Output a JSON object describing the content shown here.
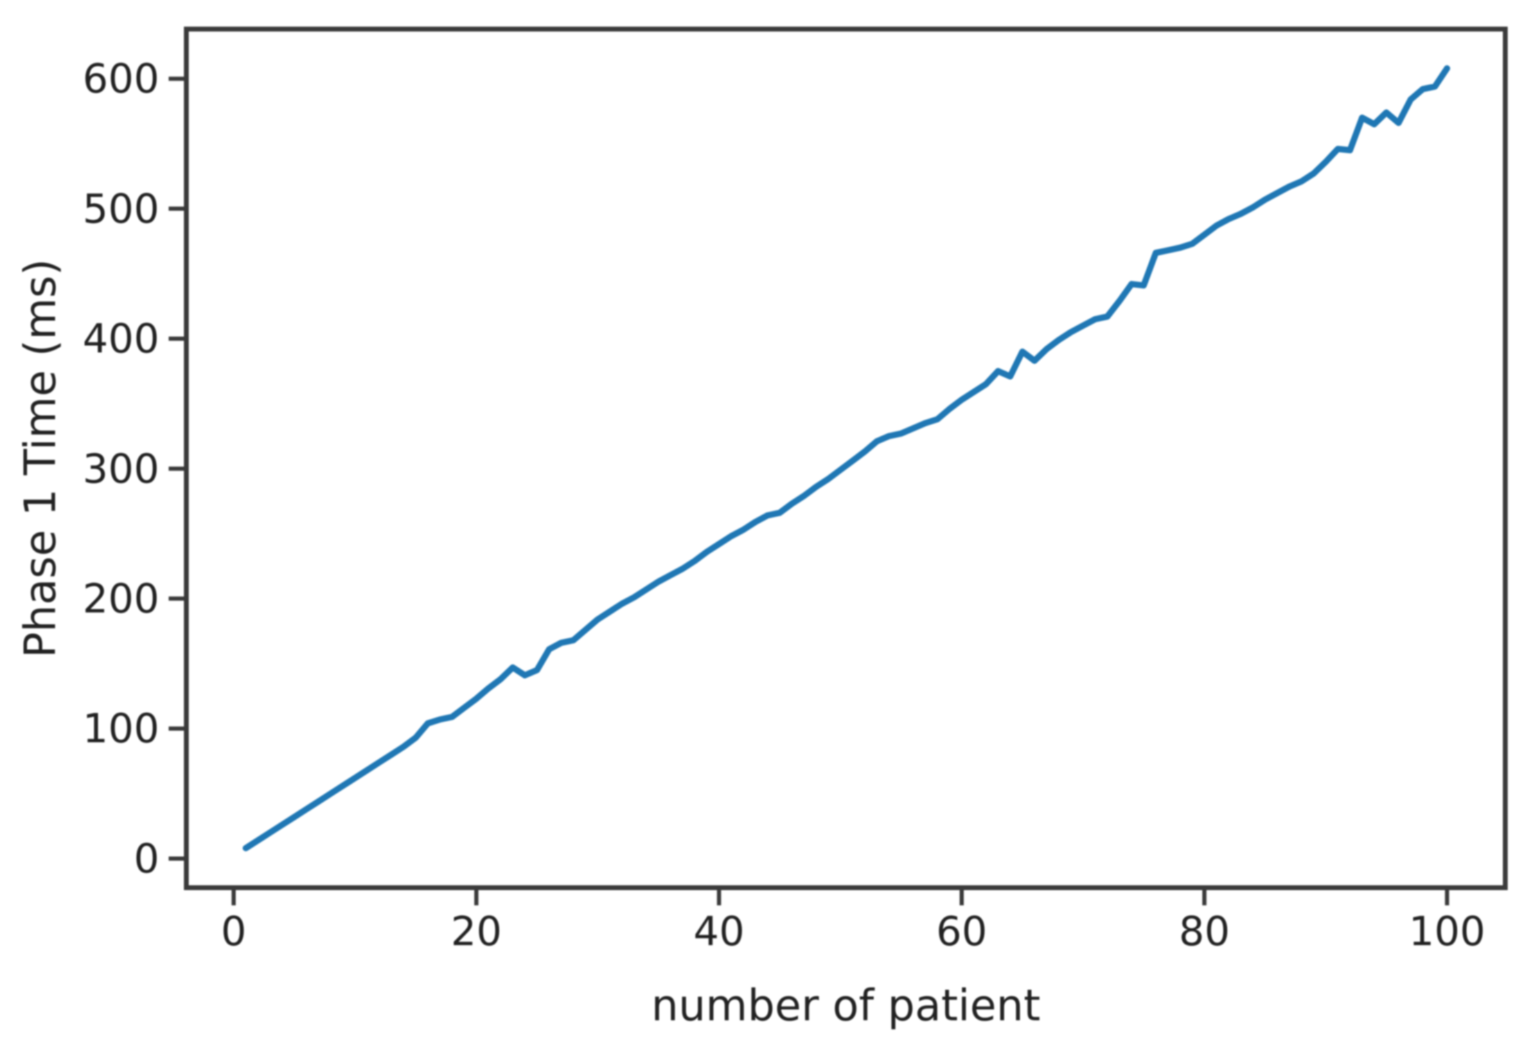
{
  "figure": {
    "background": "#ffffff"
  },
  "chart_data": {
    "type": "line",
    "title": "",
    "xlabel": "number of patient",
    "ylabel": "Phase 1 Time (ms)",
    "x_ticks": [
      0,
      20,
      40,
      60,
      80,
      100
    ],
    "y_ticks": [
      0,
      100,
      200,
      300,
      400,
      500,
      600
    ],
    "xlim": [
      -3.9,
      104.8
    ],
    "ylim": [
      -22.4,
      638.2
    ],
    "grid": false,
    "legend_position": "none",
    "line_color": "#1f77b4",
    "axis_color": "#3a3a3a",
    "text_color": "#212121",
    "series": [
      {
        "name": "phase-1-time",
        "x": [
          1,
          2,
          3,
          4,
          5,
          6,
          7,
          8,
          9,
          10,
          11,
          12,
          13,
          14,
          15,
          16,
          17,
          18,
          19,
          20,
          21,
          22,
          23,
          24,
          25,
          26,
          27,
          28,
          29,
          30,
          31,
          32,
          33,
          34,
          35,
          36,
          37,
          38,
          39,
          40,
          41,
          42,
          43,
          44,
          45,
          46,
          47,
          48,
          49,
          50,
          51,
          52,
          53,
          54,
          55,
          56,
          57,
          58,
          59,
          60,
          61,
          62,
          63,
          64,
          65,
          66,
          67,
          68,
          69,
          70,
          71,
          72,
          73,
          74,
          75,
          76,
          77,
          78,
          79,
          80,
          81,
          82,
          83,
          84,
          85,
          86,
          87,
          88,
          89,
          90,
          91,
          92,
          93,
          94,
          95,
          96,
          97,
          98,
          99,
          100
        ],
        "y": [
          8,
          14,
          20,
          26,
          32,
          38,
          44,
          50,
          56,
          62,
          68,
          74,
          80,
          86,
          93,
          104,
          107,
          109,
          116,
          123,
          131,
          138,
          147,
          141,
          145,
          161,
          166,
          168,
          176,
          184,
          190,
          196,
          201,
          207,
          213,
          218,
          223,
          229,
          236,
          242,
          248,
          253,
          259,
          264,
          266,
          273,
          279,
          286,
          292,
          299,
          306,
          313,
          321,
          325,
          327,
          331,
          335,
          338,
          346,
          353,
          359,
          365,
          375,
          371,
          390,
          383,
          392,
          399,
          405,
          410,
          415,
          417,
          429,
          442,
          441,
          466,
          468,
          470,
          473,
          480,
          487,
          492,
          496,
          501,
          507,
          512,
          517,
          521,
          527,
          536,
          546,
          545,
          570,
          565,
          574,
          566,
          584,
          592,
          594,
          608
        ]
      }
    ]
  }
}
